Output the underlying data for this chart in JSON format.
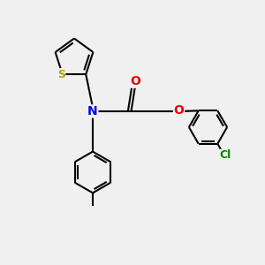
{
  "bg_color": "#f0f0f0",
  "bond_color": "#000000",
  "bond_width": 1.5,
  "S_color": "#b8a000",
  "N_color": "#0000ee",
  "O_color": "#ee0000",
  "Cl_color": "#008800",
  "font_size": 9,
  "fig_width": 3.0,
  "fig_height": 3.0,
  "dpi": 100,
  "xlim": [
    0,
    10
  ],
  "ylim": [
    0,
    10
  ]
}
